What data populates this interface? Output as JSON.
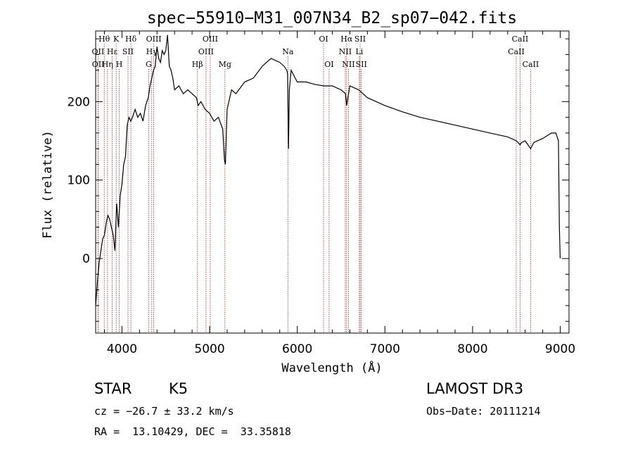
{
  "chart_data": {
    "type": "line",
    "title": "spec−55910−M31_007N34_B2_sp07−042.fits",
    "xlabel": "Wavelength (Å)",
    "ylabel": "Flux (relative)",
    "xlim": [
      3700,
      9100
    ],
    "ylim": [
      -95,
      290
    ],
    "x_ticks": [
      4000,
      5000,
      6000,
      7000,
      8000,
      9000
    ],
    "y_ticks": [
      0,
      100,
      200
    ],
    "grid": false,
    "line_color": "#000000",
    "marker_color": "#b22222",
    "spectrum": {
      "x": [
        3700,
        3720,
        3740,
        3760,
        3780,
        3800,
        3820,
        3840,
        3860,
        3880,
        3900,
        3920,
        3940,
        3960,
        3980,
        4000,
        4020,
        4040,
        4060,
        4080,
        4100,
        4120,
        4150,
        4180,
        4210,
        4240,
        4270,
        4300,
        4320,
        4340,
        4360,
        4380,
        4400,
        4420,
        4440,
        4460,
        4480,
        4500,
        4520,
        4540,
        4560,
        4580,
        4600,
        4650,
        4700,
        4750,
        4800,
        4850,
        4870,
        4900,
        4950,
        5000,
        5050,
        5100,
        5150,
        5170,
        5180,
        5200,
        5250,
        5300,
        5400,
        5500,
        5600,
        5700,
        5800,
        5850,
        5880,
        5890,
        5900,
        5910,
        5930,
        6000,
        6100,
        6200,
        6300,
        6400,
        6500,
        6550,
        6563,
        6600,
        6700,
        6800,
        6900,
        7000,
        7200,
        7400,
        7600,
        7800,
        8000,
        8200,
        8400,
        8500,
        8542,
        8560,
        8600,
        8662,
        8700,
        8800,
        8900,
        8950,
        8980,
        8990,
        9000
      ],
      "y": [
        -60,
        -30,
        -5,
        10,
        25,
        30,
        45,
        55,
        50,
        40,
        30,
        10,
        70,
        40,
        80,
        95,
        120,
        130,
        170,
        180,
        175,
        180,
        190,
        180,
        185,
        175,
        195,
        205,
        220,
        230,
        240,
        245,
        270,
        255,
        250,
        265,
        260,
        265,
        285,
        245,
        240,
        230,
        215,
        220,
        210,
        215,
        210,
        205,
        195,
        200,
        190,
        185,
        175,
        180,
        165,
        125,
        120,
        190,
        215,
        210,
        225,
        230,
        245,
        255,
        250,
        245,
        240,
        235,
        140,
        215,
        240,
        225,
        225,
        222,
        220,
        220,
        215,
        210,
        195,
        220,
        215,
        205,
        200,
        195,
        187,
        180,
        175,
        170,
        165,
        160,
        155,
        150,
        145,
        148,
        150,
        140,
        148,
        153,
        160,
        160,
        150,
        40,
        0
      ]
    },
    "lines": [
      {
        "name": "Hθ",
        "x": 3798,
        "row": 0
      },
      {
        "name": "OII",
        "x": 3727,
        "row": 1
      },
      {
        "name": "OII",
        "x": 3729,
        "row": 2
      },
      {
        "name": "K",
        "x": 3934,
        "row": 0
      },
      {
        "name": "Hε",
        "x": 3889,
        "row": 1
      },
      {
        "name": "Hη",
        "x": 3835,
        "row": 2
      },
      {
        "name": "Hδ",
        "x": 4102,
        "row": 0
      },
      {
        "name": "SII",
        "x": 4069,
        "row": 1
      },
      {
        "name": "H",
        "x": 3969,
        "row": 2
      },
      {
        "name": "OIII",
        "x": 4363,
        "row": 0
      },
      {
        "name": "Hγ",
        "x": 4340,
        "row": 1
      },
      {
        "name": "G",
        "x": 4305,
        "row": 2
      },
      {
        "name": "OIII",
        "x": 5007,
        "row": 0
      },
      {
        "name": "OIII",
        "x": 4959,
        "row": 1
      },
      {
        "name": "Hβ",
        "x": 4861,
        "row": 2
      },
      {
        "name": "Mg",
        "x": 5175,
        "row": 2
      },
      {
        "name": "Na",
        "x": 5893,
        "row": 1
      },
      {
        "name": "OI",
        "x": 6300,
        "row": 0
      },
      {
        "name": "OI",
        "x": 6363,
        "row": 2
      },
      {
        "name": "Hα",
        "x": 6563,
        "row": 0
      },
      {
        "name": "NII",
        "x": 6548,
        "row": 1
      },
      {
        "name": "NII",
        "x": 6584,
        "row": 2
      },
      {
        "name": "SII",
        "x": 6717,
        "row": 0
      },
      {
        "name": "Li",
        "x": 6708,
        "row": 1
      },
      {
        "name": "SII",
        "x": 6731,
        "row": 2
      },
      {
        "name": "CaII",
        "x": 8542,
        "row": 0
      },
      {
        "name": "CaII",
        "x": 8498,
        "row": 1
      },
      {
        "name": "CaII",
        "x": 8662,
        "row": 2
      }
    ]
  },
  "info": {
    "object_class": "STAR",
    "subclass": "K5",
    "survey": "LAMOST DR3",
    "cz": "cz = −26.7 ± 33.2 km/s",
    "obs_date": "Obs−Date: 20111214",
    "coords": "RA =  13.10429, DEC =  33.35818"
  }
}
